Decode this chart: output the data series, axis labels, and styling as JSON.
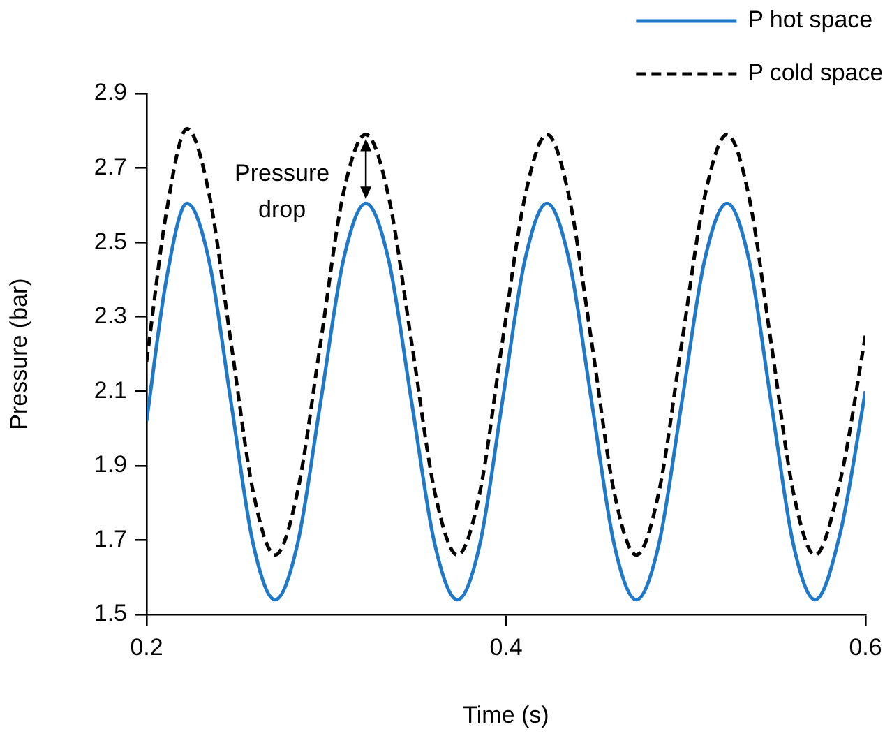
{
  "chart_data": {
    "type": "line",
    "xlabel": "Time (s)",
    "ylabel": "Pressure (bar)",
    "x": [
      0.2,
      0.211,
      0.2225,
      0.2348,
      0.247,
      0.2593,
      0.2715,
      0.284,
      0.2968,
      0.3094,
      0.322,
      0.3348,
      0.3475,
      0.3603,
      0.373,
      0.3855,
      0.3979,
      0.4104,
      0.4228,
      0.4352,
      0.4477,
      0.4601,
      0.4725,
      0.4851,
      0.4978,
      0.5104,
      0.523,
      0.5353,
      0.5475,
      0.5598,
      0.572,
      0.586,
      0.6
    ],
    "series": [
      {
        "name": "P hot space",
        "color": "#1f78c8",
        "line_style": "solid",
        "values": [
          2.02,
          2.4,
          2.605,
          2.45,
          2.07,
          1.69,
          1.54,
          1.69,
          2.07,
          2.45,
          2.605,
          2.45,
          2.07,
          1.69,
          1.54,
          1.69,
          2.07,
          2.45,
          2.605,
          2.45,
          2.07,
          1.69,
          1.54,
          1.69,
          2.07,
          2.45,
          2.605,
          2.45,
          2.07,
          1.69,
          1.54,
          1.72,
          2.1
        ]
      },
      {
        "name": "P cold space",
        "color": "#000000",
        "line_style": "dashed",
        "values": [
          2.18,
          2.58,
          2.805,
          2.63,
          2.23,
          1.83,
          1.66,
          1.83,
          2.23,
          2.63,
          2.79,
          2.62,
          2.23,
          1.83,
          1.66,
          1.83,
          2.23,
          2.62,
          2.79,
          2.62,
          2.23,
          1.83,
          1.66,
          1.83,
          2.23,
          2.62,
          2.79,
          2.62,
          2.23,
          1.83,
          1.66,
          1.86,
          2.25
        ]
      }
    ],
    "xlim": [
      0.2,
      0.6
    ],
    "xticks": [
      0.2,
      0.4,
      0.6
    ],
    "ylim": [
      1.5,
      2.9
    ],
    "yticks": [
      1.5,
      1.7,
      1.9,
      2.1,
      2.3,
      2.5,
      2.7,
      2.9
    ],
    "annotations": [
      {
        "text": "Pressure drop",
        "x": 0.322,
        "y": 2.605
      }
    ],
    "grid": false,
    "legend": "top right",
    "marker": "none"
  }
}
